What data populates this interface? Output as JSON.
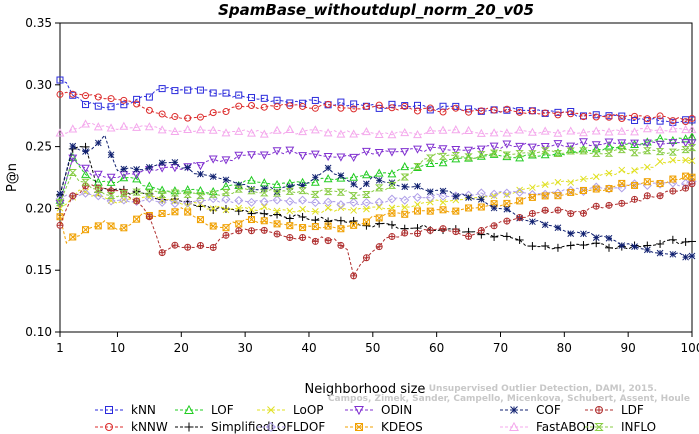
{
  "chart_data": {
    "type": "line",
    "title": "SpamBase_withoutdupl_norm_20_v05",
    "xlabel": "Neighborhood size",
    "ylabel": "P@n",
    "xlim": [
      1,
      100
    ],
    "ylim": [
      0.1,
      0.35
    ],
    "xticks": [
      "1",
      "10",
      "20",
      "30",
      "40",
      "50",
      "60",
      "70",
      "80",
      "90",
      "100"
    ],
    "yticks": [
      "0.10",
      "0.15",
      "0.20",
      "0.25",
      "0.30",
      "0.35"
    ],
    "grid": false,
    "legend_position": "bottom",
    "watermark": {
      "line1": "Unsupervised Outlier Detection, DAMI, 2015.",
      "line2": "Campos, Zimek, Sander, Campello, Micenkova, Schubert, Assent, Houle"
    },
    "series": [
      {
        "name": "kNN",
        "color": "#2b2bdc",
        "marker": "square",
        "knots": [
          [
            1,
            0.305
          ],
          [
            2,
            0.3
          ],
          [
            3,
            0.292
          ],
          [
            5,
            0.285
          ],
          [
            8,
            0.282
          ],
          [
            11,
            0.283
          ],
          [
            14,
            0.29
          ],
          [
            17,
            0.296
          ],
          [
            20,
            0.297
          ],
          [
            25,
            0.294
          ],
          [
            30,
            0.29
          ],
          [
            35,
            0.288
          ],
          [
            40,
            0.286
          ],
          [
            50,
            0.283
          ],
          [
            60,
            0.281
          ],
          [
            70,
            0.28
          ],
          [
            80,
            0.277
          ],
          [
            90,
            0.273
          ],
          [
            100,
            0.27
          ]
        ]
      },
      {
        "name": "kNNW",
        "color": "#dc2b2b",
        "marker": "circle",
        "knots": [
          [
            1,
            0.294
          ],
          [
            3,
            0.292
          ],
          [
            6,
            0.292
          ],
          [
            10,
            0.288
          ],
          [
            14,
            0.282
          ],
          [
            17,
            0.276
          ],
          [
            20,
            0.272
          ],
          [
            25,
            0.277
          ],
          [
            30,
            0.282
          ],
          [
            35,
            0.284
          ],
          [
            40,
            0.283
          ],
          [
            50,
            0.282
          ],
          [
            60,
            0.28
          ],
          [
            70,
            0.279
          ],
          [
            80,
            0.277
          ],
          [
            90,
            0.274
          ],
          [
            100,
            0.272
          ]
        ]
      },
      {
        "name": "LOF",
        "color": "#22cc22",
        "marker": "triangle-up",
        "knots": [
          [
            1,
            0.205
          ],
          [
            3,
            0.24
          ],
          [
            5,
            0.228
          ],
          [
            8,
            0.22
          ],
          [
            12,
            0.225
          ],
          [
            16,
            0.215
          ],
          [
            20,
            0.215
          ],
          [
            25,
            0.212
          ],
          [
            30,
            0.222
          ],
          [
            35,
            0.218
          ],
          [
            40,
            0.222
          ],
          [
            45,
            0.225
          ],
          [
            50,
            0.226
          ],
          [
            55,
            0.232
          ],
          [
            60,
            0.238
          ],
          [
            65,
            0.24
          ],
          [
            70,
            0.243
          ],
          [
            75,
            0.242
          ],
          [
            80,
            0.245
          ],
          [
            85,
            0.248
          ],
          [
            90,
            0.252
          ],
          [
            95,
            0.256
          ],
          [
            100,
            0.258
          ]
        ]
      },
      {
        "name": "SimplifiedLOF",
        "color": "#000000",
        "marker": "plus",
        "knots": [
          [
            1,
            0.21
          ],
          [
            3,
            0.25
          ],
          [
            5,
            0.25
          ],
          [
            7,
            0.215
          ],
          [
            10,
            0.215
          ],
          [
            15,
            0.21
          ],
          [
            20,
            0.205
          ],
          [
            25,
            0.2
          ],
          [
            30,
            0.198
          ],
          [
            40,
            0.192
          ],
          [
            50,
            0.187
          ],
          [
            60,
            0.184
          ],
          [
            65,
            0.182
          ],
          [
            70,
            0.178
          ],
          [
            72,
            0.175
          ],
          [
            75,
            0.168
          ],
          [
            80,
            0.17
          ],
          [
            85,
            0.17
          ],
          [
            90,
            0.168
          ],
          [
            95,
            0.172
          ],
          [
            100,
            0.174
          ]
        ]
      },
      {
        "name": "LoOP",
        "color": "#e0e020",
        "marker": "x",
        "knots": [
          [
            1,
            0.2
          ],
          [
            4,
            0.215
          ],
          [
            7,
            0.21
          ],
          [
            10,
            0.205
          ],
          [
            15,
            0.21
          ],
          [
            20,
            0.205
          ],
          [
            25,
            0.2
          ],
          [
            30,
            0.2
          ],
          [
            40,
            0.198
          ],
          [
            50,
            0.2
          ],
          [
            60,
            0.205
          ],
          [
            65,
            0.208
          ],
          [
            70,
            0.212
          ],
          [
            75,
            0.215
          ],
          [
            80,
            0.222
          ],
          [
            85,
            0.226
          ],
          [
            90,
            0.23
          ],
          [
            95,
            0.236
          ],
          [
            100,
            0.24
          ]
        ]
      },
      {
        "name": "LDOF",
        "color": "#b0a0e8",
        "marker": "diamond",
        "knots": [
          [
            1,
            0.208
          ],
          [
            5,
            0.212
          ],
          [
            10,
            0.205
          ],
          [
            15,
            0.208
          ],
          [
            20,
            0.205
          ],
          [
            25,
            0.207
          ],
          [
            30,
            0.205
          ],
          [
            40,
            0.205
          ],
          [
            50,
            0.204
          ],
          [
            55,
            0.208
          ],
          [
            60,
            0.21
          ],
          [
            70,
            0.212
          ],
          [
            80,
            0.214
          ],
          [
            90,
            0.218
          ],
          [
            100,
            0.22
          ]
        ]
      },
      {
        "name": "ODIN",
        "color": "#8030d0",
        "marker": "triangle-down",
        "knots": [
          [
            1,
            0.205
          ],
          [
            3,
            0.24
          ],
          [
            6,
            0.228
          ],
          [
            10,
            0.225
          ],
          [
            15,
            0.23
          ],
          [
            20,
            0.233
          ],
          [
            25,
            0.238
          ],
          [
            30,
            0.242
          ],
          [
            35,
            0.246
          ],
          [
            40,
            0.244
          ],
          [
            45,
            0.242
          ],
          [
            50,
            0.245
          ],
          [
            55,
            0.247
          ],
          [
            60,
            0.248
          ],
          [
            70,
            0.25
          ],
          [
            80,
            0.252
          ],
          [
            90,
            0.253
          ],
          [
            100,
            0.252
          ]
        ]
      },
      {
        "name": "KDEOS",
        "color": "#f0a000",
        "marker": "square-x",
        "knots": [
          [
            1,
            0.195
          ],
          [
            2,
            0.172
          ],
          [
            5,
            0.182
          ],
          [
            8,
            0.188
          ],
          [
            11,
            0.183
          ],
          [
            14,
            0.196
          ],
          [
            17,
            0.195
          ],
          [
            20,
            0.2
          ],
          [
            23,
            0.19
          ],
          [
            26,
            0.185
          ],
          [
            30,
            0.19
          ],
          [
            35,
            0.188
          ],
          [
            40,
            0.185
          ],
          [
            45,
            0.183
          ],
          [
            50,
            0.192
          ],
          [
            55,
            0.196
          ],
          [
            60,
            0.198
          ],
          [
            65,
            0.2
          ],
          [
            70,
            0.203
          ],
          [
            75,
            0.21
          ],
          [
            80,
            0.212
          ],
          [
            85,
            0.215
          ],
          [
            90,
            0.22
          ],
          [
            95,
            0.222
          ],
          [
            100,
            0.225
          ]
        ]
      },
      {
        "name": "COF",
        "color": "#102070",
        "marker": "asterisk",
        "knots": [
          [
            1,
            0.21
          ],
          [
            3,
            0.252
          ],
          [
            5,
            0.245
          ],
          [
            8,
            0.258
          ],
          [
            10,
            0.23
          ],
          [
            14,
            0.232
          ],
          [
            18,
            0.238
          ],
          [
            22,
            0.23
          ],
          [
            26,
            0.224
          ],
          [
            30,
            0.218
          ],
          [
            35,
            0.215
          ],
          [
            40,
            0.22
          ],
          [
            43,
            0.232
          ],
          [
            45,
            0.225
          ],
          [
            48,
            0.215
          ],
          [
            50,
            0.225
          ],
          [
            55,
            0.218
          ],
          [
            60,
            0.214
          ],
          [
            65,
            0.21
          ],
          [
            70,
            0.2
          ],
          [
            75,
            0.19
          ],
          [
            80,
            0.182
          ],
          [
            85,
            0.178
          ],
          [
            90,
            0.17
          ],
          [
            95,
            0.163
          ],
          [
            100,
            0.162
          ]
        ]
      },
      {
        "name": "FastABOD",
        "color": "#f4a8ec",
        "marker": "triangle-up",
        "knots": [
          [
            1,
            0.26
          ],
          [
            3,
            0.265
          ],
          [
            6,
            0.268
          ],
          [
            10,
            0.265
          ],
          [
            15,
            0.265
          ],
          [
            20,
            0.262
          ],
          [
            30,
            0.262
          ],
          [
            40,
            0.262
          ],
          [
            50,
            0.261
          ],
          [
            60,
            0.262
          ],
          [
            70,
            0.262
          ],
          [
            80,
            0.262
          ],
          [
            90,
            0.263
          ],
          [
            100,
            0.265
          ]
        ]
      },
      {
        "name": "LDF",
        "color": "#b03030",
        "marker": "circle-plus",
        "knots": [
          [
            1,
            0.186
          ],
          [
            3,
            0.21
          ],
          [
            6,
            0.22
          ],
          [
            9,
            0.215
          ],
          [
            12,
            0.21
          ],
          [
            15,
            0.195
          ],
          [
            17,
            0.165
          ],
          [
            20,
            0.17
          ],
          [
            25,
            0.17
          ],
          [
            28,
            0.18
          ],
          [
            32,
            0.183
          ],
          [
            36,
            0.178
          ],
          [
            40,
            0.175
          ],
          [
            44,
            0.176
          ],
          [
            46,
            0.165
          ],
          [
            47,
            0.145
          ],
          [
            49,
            0.162
          ],
          [
            52,
            0.175
          ],
          [
            55,
            0.18
          ],
          [
            60,
            0.183
          ],
          [
            65,
            0.178
          ],
          [
            70,
            0.188
          ],
          [
            72,
            0.19
          ],
          [
            75,
            0.196
          ],
          [
            78,
            0.198
          ],
          [
            82,
            0.197
          ],
          [
            85,
            0.2
          ],
          [
            88,
            0.202
          ],
          [
            90,
            0.205
          ],
          [
            95,
            0.212
          ],
          [
            100,
            0.218
          ]
        ]
      },
      {
        "name": "INFLO",
        "color": "#88cc44",
        "marker": "hourglass",
        "knots": [
          [
            1,
            0.205
          ],
          [
            3,
            0.228
          ],
          [
            6,
            0.215
          ],
          [
            10,
            0.21
          ],
          [
            15,
            0.213
          ],
          [
            20,
            0.212
          ],
          [
            25,
            0.212
          ],
          [
            30,
            0.214
          ],
          [
            40,
            0.213
          ],
          [
            50,
            0.212
          ],
          [
            55,
            0.225
          ],
          [
            58,
            0.24
          ],
          [
            60,
            0.245
          ],
          [
            65,
            0.24
          ],
          [
            70,
            0.245
          ],
          [
            75,
            0.244
          ],
          [
            80,
            0.246
          ],
          [
            85,
            0.245
          ],
          [
            90,
            0.246
          ],
          [
            95,
            0.245
          ],
          [
            100,
            0.248
          ]
        ]
      }
    ]
  }
}
